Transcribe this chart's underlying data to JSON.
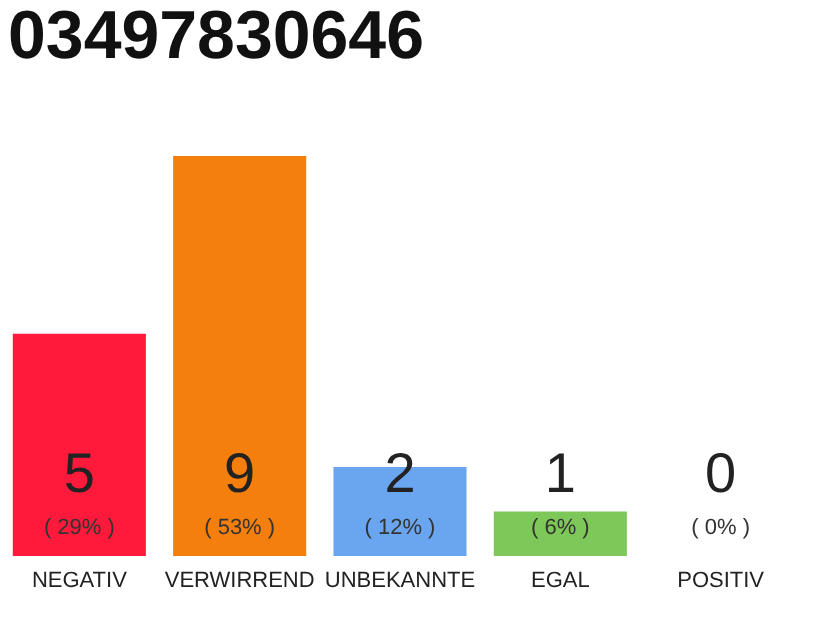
{
  "chart_data": {
    "type": "bar",
    "title": "03497830646",
    "categories": [
      "NEGATIV",
      "VERWIRREND",
      "UNBEKANNTE",
      "EGAL",
      "POSITIV"
    ],
    "values": [
      5,
      9,
      2,
      1,
      0
    ],
    "colors": [
      "#ff1a3c",
      "#f57f0c",
      "#6aa5f0",
      "#7ec85a",
      "#cccccc"
    ],
    "data_labels": true,
    "tick_labels": "x",
    "grid": false,
    "annotations": [
      "( 29% )",
      "( 53% )",
      "( 12% )",
      "( 6% )",
      "( 0% )"
    ]
  }
}
